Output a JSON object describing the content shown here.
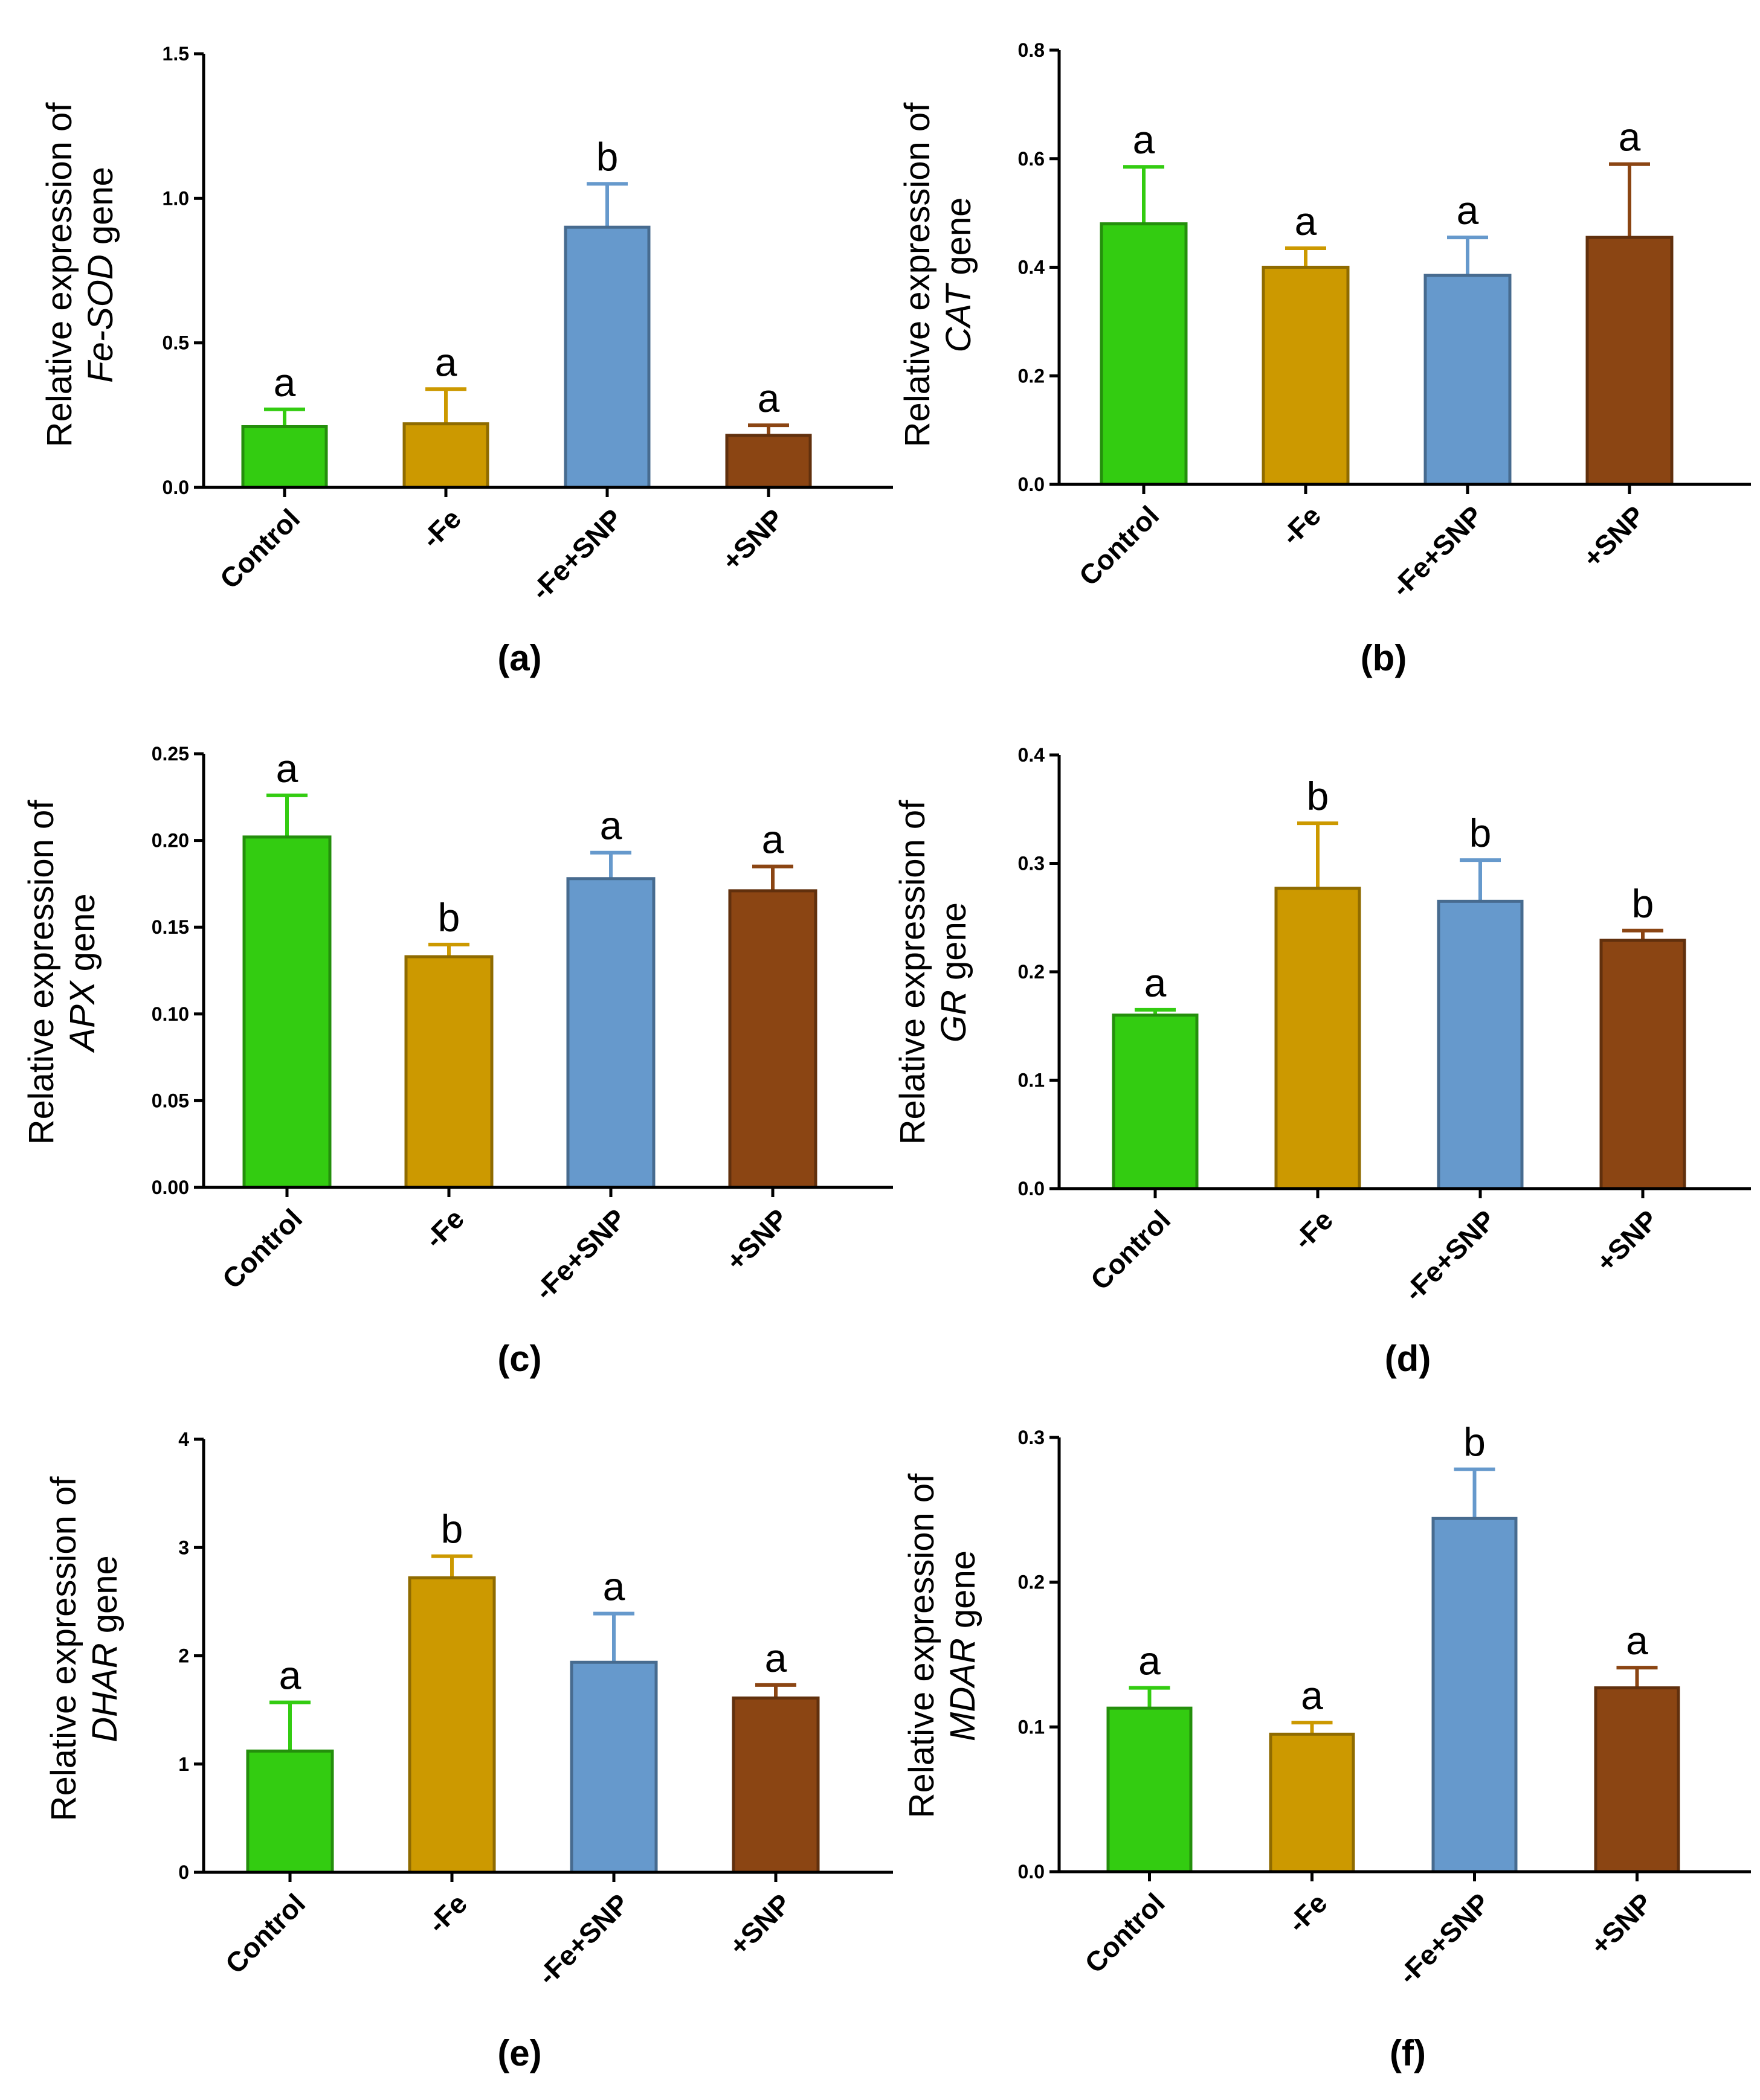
{
  "colors": {
    "green": "#33cc11",
    "gold": "#cc9900",
    "blue": "#6699cc",
    "brown": "#8b4513"
  },
  "chart_data": [
    {
      "type": "bar",
      "panel_label": "(a)",
      "categories": [
        "Control",
        "-Fe",
        "-Fe+SNP",
        "+SNP"
      ],
      "values": [
        0.21,
        0.22,
        0.9,
        0.18
      ],
      "errors": [
        0.06,
        0.12,
        0.15,
        0.035
      ],
      "letters": [
        "a",
        "a",
        "b",
        "a"
      ],
      "ylim": [
        0,
        1.5
      ],
      "ticks": [
        0.0,
        0.5,
        1.0,
        1.5
      ],
      "tick_labels": [
        "0.0",
        "0.5",
        "1.0",
        "1.5"
      ],
      "ylabel_line1": "Relative expression of",
      "ylabel_gene": "Fe-SOD",
      "ylabel_suffix": " gene"
    },
    {
      "type": "bar",
      "panel_label": "(b)",
      "categories": [
        "Control",
        "-Fe",
        "-Fe+SNP",
        "+SNP"
      ],
      "values": [
        0.48,
        0.4,
        0.385,
        0.455
      ],
      "errors": [
        0.105,
        0.035,
        0.07,
        0.135
      ],
      "letters": [
        "a",
        "a",
        "a",
        "a"
      ],
      "ylim": [
        0,
        0.8
      ],
      "ticks": [
        0.0,
        0.2,
        0.4,
        0.6,
        0.8
      ],
      "tick_labels": [
        "0.0",
        "0.2",
        "0.4",
        "0.6",
        "0.8"
      ],
      "ylabel_line1": "Relative expression of",
      "ylabel_gene": "CAT",
      "ylabel_suffix": " gene"
    },
    {
      "type": "bar",
      "panel_label": "(c)",
      "categories": [
        "Control",
        "-Fe",
        "-Fe+SNP",
        "+SNP"
      ],
      "values": [
        0.202,
        0.133,
        0.178,
        0.171
      ],
      "errors": [
        0.024,
        0.007,
        0.015,
        0.014
      ],
      "letters": [
        "a",
        "b",
        "a",
        "a"
      ],
      "ylim": [
        0,
        0.25
      ],
      "ticks": [
        0.0,
        0.05,
        0.1,
        0.15,
        0.2,
        0.25
      ],
      "tick_labels": [
        "0.00",
        "0.05",
        "0.10",
        "0.15",
        "0.20",
        "0.25"
      ],
      "ylabel_line1": "Relative expression of",
      "ylabel_gene": "APX",
      "ylabel_suffix": " gene"
    },
    {
      "type": "bar",
      "panel_label": "(d)",
      "categories": [
        "Control",
        "-Fe",
        "-Fe+SNP",
        "+SNP"
      ],
      "values": [
        0.16,
        0.277,
        0.265,
        0.229
      ],
      "errors": [
        0.005,
        0.06,
        0.038,
        0.009
      ],
      "letters": [
        "a",
        "b",
        "b",
        "b"
      ],
      "ylim": [
        0,
        0.4
      ],
      "ticks": [
        0.0,
        0.1,
        0.2,
        0.3,
        0.4
      ],
      "tick_labels": [
        "0.0",
        "0.1",
        "0.2",
        "0.3",
        "0.4"
      ],
      "ylabel_line1": "Relative expression of",
      "ylabel_gene": "GR",
      "ylabel_suffix": " gene"
    },
    {
      "type": "bar",
      "panel_label": "(e)",
      "categories": [
        "Control",
        "-Fe",
        "-Fe+SNP",
        "+SNP"
      ],
      "values": [
        1.12,
        2.72,
        1.94,
        1.61
      ],
      "errors": [
        0.45,
        0.2,
        0.45,
        0.12
      ],
      "letters": [
        "a",
        "b",
        "a",
        "a"
      ],
      "ylim": [
        0,
        4
      ],
      "ticks": [
        0,
        1,
        2,
        3,
        4
      ],
      "tick_labels": [
        "0",
        "1",
        "2",
        "3",
        "4"
      ],
      "ylabel_line1": "Relative expression of",
      "ylabel_gene": "DHAR",
      "ylabel_suffix": " gene"
    },
    {
      "type": "bar",
      "panel_label": "(f)",
      "categories": [
        "Control",
        "-Fe",
        "-Fe+SNP",
        "+SNP"
      ],
      "values": [
        0.113,
        0.095,
        0.244,
        0.127
      ],
      "errors": [
        0.014,
        0.008,
        0.034,
        0.014
      ],
      "letters": [
        "a",
        "a",
        "b",
        "a"
      ],
      "ylim": [
        0,
        0.3
      ],
      "ticks": [
        0.0,
        0.1,
        0.2,
        0.3
      ],
      "tick_labels": [
        "0.0",
        "0.1",
        "0.2",
        "0.3"
      ],
      "ylabel_line1": "Relative expression of",
      "ylabel_gene": "MDAR",
      "ylabel_suffix": " gene"
    }
  ]
}
